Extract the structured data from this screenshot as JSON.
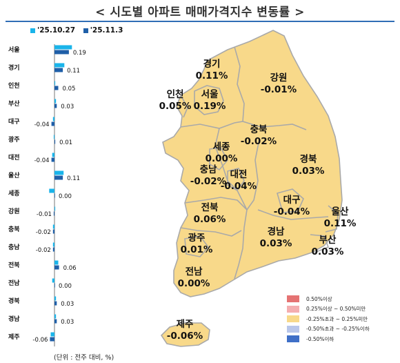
{
  "title": "시도별 아파트 매매가격지수 변동률",
  "nav": {
    "prev": "<",
    "next": ">"
  },
  "unit_note": "(단위 : 전주 대비, %)",
  "colors": {
    "series_prev": "#1ab4ea",
    "series_curr": "#1f5fa8",
    "map_fill": "#f8d98a",
    "map_stroke": "#a9a9a9",
    "rule": "#2f6db5"
  },
  "chart_data": {
    "type": "bar",
    "orientation": "horizontal",
    "categories": [
      "서울",
      "경기",
      "인천",
      "부산",
      "대구",
      "광주",
      "대전",
      "울산",
      "세종",
      "강원",
      "충북",
      "충남",
      "전북",
      "전남",
      "경북",
      "경남",
      "제주"
    ],
    "series": [
      {
        "name": "'25.10.27",
        "values": [
          0.23,
          0.13,
          0.01,
          0.02,
          -0.02,
          -0.01,
          -0.03,
          0.12,
          -0.07,
          0.01,
          -0.02,
          -0.02,
          0.05,
          -0.03,
          0.02,
          0.02,
          -0.05
        ]
      },
      {
        "name": "'25.11.3",
        "values": [
          0.19,
          0.11,
          0.05,
          0.03,
          -0.04,
          0.01,
          -0.04,
          0.11,
          0.0,
          -0.01,
          -0.02,
          -0.02,
          0.06,
          0.0,
          0.03,
          0.03,
          -0.06
        ]
      }
    ],
    "value_labels": [
      "0.19",
      "0.11",
      "0.05",
      "0.03",
      "-0.04",
      "0.01",
      "-0.04",
      "0.11",
      "0.00",
      "-0.01",
      "-0.02",
      "-0.02",
      "0.06",
      "0.00",
      "0.03",
      "0.03",
      "-0.06"
    ],
    "legend_position": "top-left"
  },
  "map_labels": [
    {
      "name": "경기",
      "value": "0.11%"
    },
    {
      "name": "강원",
      "value": "-0.01%"
    },
    {
      "name": "인천",
      "value": "0.05%"
    },
    {
      "name": "서울",
      "value": "0.19%"
    },
    {
      "name": "충북",
      "value": "-0.02%"
    },
    {
      "name": "세종",
      "value": "0.00%"
    },
    {
      "name": "경북",
      "value": "0.03%"
    },
    {
      "name": "충남",
      "value": "-0.02%"
    },
    {
      "name": "대전",
      "value": "-0.04%"
    },
    {
      "name": "대구",
      "value": "-0.04%"
    },
    {
      "name": "울산",
      "value": "0.11%"
    },
    {
      "name": "전북",
      "value": "0.06%"
    },
    {
      "name": "경남",
      "value": "0.03%"
    },
    {
      "name": "부산",
      "value": "0.03%"
    },
    {
      "name": "광주",
      "value": "0.01%"
    },
    {
      "name": "전남",
      "value": "0.00%"
    },
    {
      "name": "제주",
      "value": "-0.06%"
    }
  ],
  "map_legend": [
    {
      "label": "0.50%이상",
      "color": "#e57373"
    },
    {
      "label": "0.25%이상 ~ 0.50%미만",
      "color": "#f4aeb0"
    },
    {
      "label": "-0.25%초과 ~ 0.25%미만",
      "color": "#f8d98a"
    },
    {
      "label": "-0.50%초과 ~ -0.25%이하",
      "color": "#b8c6ea"
    },
    {
      "label": "-0.50%이하",
      "color": "#3f6fc7"
    }
  ]
}
